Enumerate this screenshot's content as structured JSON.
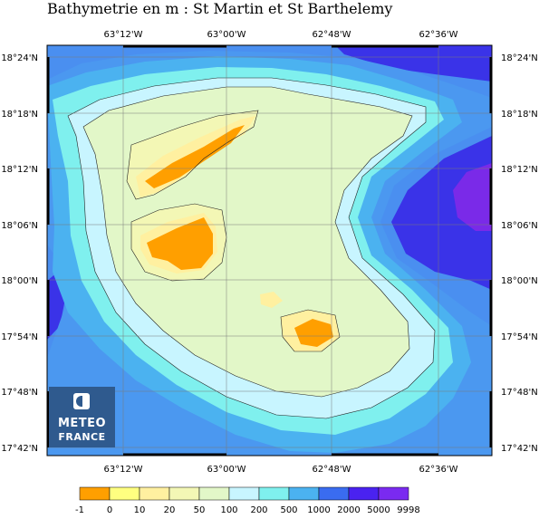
{
  "title": "Bathymetrie en m : St Martin et St Barthelemy",
  "axes": {
    "lon_labels": [
      "63°12'W",
      "63°00'W",
      "62°48'W",
      "62°36'W"
    ],
    "lat_labels": [
      "18°24'N",
      "18°18'N",
      "18°12'N",
      "18°06'N",
      "18°00'N",
      "17°54'N",
      "17°48'N",
      "17°42'N"
    ]
  },
  "legend": {
    "levels": [
      "-1",
      "0",
      "10",
      "20",
      "50",
      "100",
      "200",
      "500",
      "1000",
      "2000",
      "5000",
      "9998"
    ],
    "colors": [
      "#ff9f00",
      "#ffff80",
      "#fff0a0",
      "#f3f7b5",
      "#e2f7c8",
      "#c8f5ff",
      "#7ff0ee",
      "#4bb2f0",
      "#3a6cf0",
      "#4a22f0",
      "#7a2af0",
      "#3b1592"
    ]
  },
  "logo": {
    "line1": "METEO",
    "line2": "FRANCE"
  },
  "grid": true
}
